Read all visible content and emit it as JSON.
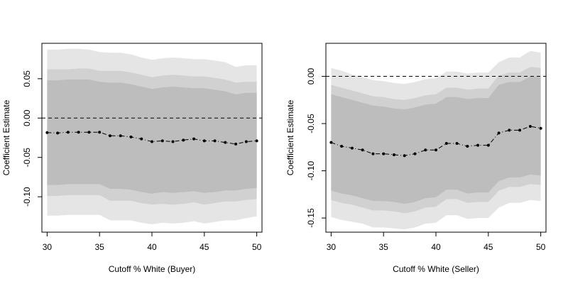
{
  "chart_data": [
    {
      "type": "line",
      "xlabel": "Cutoff % White (Buyer)",
      "ylabel": "Coefficient Estimate",
      "xlim": [
        29.5,
        50.5
      ],
      "ylim": [
        -0.145,
        0.095
      ],
      "x_ticks": [
        30,
        35,
        40,
        45,
        50
      ],
      "x_tick_labels": [
        "30",
        "35",
        "40",
        "45",
        "50"
      ],
      "y_ticks": [
        0.05,
        0.0,
        -0.05,
        -0.1
      ],
      "y_tick_labels": [
        "0.05",
        "0.00",
        "-0.05",
        "-0.10"
      ],
      "reference_line": 0.0,
      "x": [
        30,
        31,
        32,
        33,
        34,
        35,
        36,
        37,
        38,
        39,
        40,
        41,
        42,
        43,
        44,
        45,
        46,
        47,
        48,
        49,
        50
      ],
      "estimate": [
        -0.0185,
        -0.019,
        -0.018,
        -0.018,
        -0.018,
        -0.018,
        -0.0225,
        -0.0225,
        -0.024,
        -0.0265,
        -0.03,
        -0.029,
        -0.03,
        -0.028,
        -0.0265,
        -0.029,
        -0.029,
        -0.031,
        -0.033,
        -0.03,
        -0.029
      ],
      "bands": [
        {
          "level": "outer",
          "color": "#e5e5e5",
          "upper": [
            0.087,
            0.087,
            0.088,
            0.088,
            0.087,
            0.084,
            0.083,
            0.083,
            0.081,
            0.077,
            0.074,
            0.076,
            0.077,
            0.076,
            0.075,
            0.075,
            0.073,
            0.071,
            0.065,
            0.067,
            0.067
          ],
          "lower": [
            -0.124,
            -0.124,
            -0.123,
            -0.123,
            -0.123,
            -0.123,
            -0.13,
            -0.13,
            -0.13,
            -0.133,
            -0.135,
            -0.133,
            -0.134,
            -0.133,
            -0.131,
            -0.134,
            -0.132,
            -0.13,
            -0.13,
            -0.127,
            -0.125
          ]
        },
        {
          "level": "middle",
          "color": "#d1d1d1",
          "upper": [
            0.062,
            0.062,
            0.062,
            0.063,
            0.063,
            0.06,
            0.06,
            0.06,
            0.058,
            0.055,
            0.052,
            0.054,
            0.055,
            0.054,
            0.053,
            0.053,
            0.051,
            0.049,
            0.045,
            0.046,
            0.046
          ],
          "lower": [
            -0.099,
            -0.099,
            -0.098,
            -0.098,
            -0.098,
            -0.098,
            -0.105,
            -0.105,
            -0.105,
            -0.108,
            -0.11,
            -0.109,
            -0.11,
            -0.109,
            -0.107,
            -0.11,
            -0.108,
            -0.106,
            -0.106,
            -0.104,
            -0.103
          ]
        },
        {
          "level": "inner",
          "color": "#bdbdbd",
          "upper": [
            0.048,
            0.048,
            0.049,
            0.049,
            0.049,
            0.046,
            0.045,
            0.045,
            0.043,
            0.04,
            0.037,
            0.039,
            0.04,
            0.039,
            0.038,
            0.038,
            0.036,
            0.034,
            0.03,
            0.032,
            0.032
          ],
          "lower": [
            -0.085,
            -0.085,
            -0.084,
            -0.084,
            -0.084,
            -0.084,
            -0.09,
            -0.09,
            -0.091,
            -0.094,
            -0.096,
            -0.094,
            -0.095,
            -0.094,
            -0.093,
            -0.095,
            -0.094,
            -0.092,
            -0.092,
            -0.09,
            -0.089
          ]
        }
      ]
    },
    {
      "type": "line",
      "xlabel": "Cutoff % White (Seller)",
      "ylabel": "Coefficient Estimate",
      "xlim": [
        29.5,
        50.5
      ],
      "ylim": [
        -0.165,
        0.035
      ],
      "x_ticks": [
        30,
        35,
        40,
        45,
        50
      ],
      "x_tick_labels": [
        "30",
        "35",
        "40",
        "45",
        "50"
      ],
      "y_ticks": [
        0.0,
        -0.05,
        -0.1,
        -0.15
      ],
      "y_tick_labels": [
        "0.00",
        "-0.05",
        "-0.10",
        "-0.15"
      ],
      "reference_line": 0.0,
      "x": [
        30,
        31,
        32,
        33,
        34,
        35,
        36,
        37,
        38,
        39,
        40,
        41,
        42,
        43,
        44,
        45,
        46,
        47,
        48,
        49,
        50
      ],
      "estimate": [
        -0.07,
        -0.074,
        -0.076,
        -0.078,
        -0.082,
        -0.082,
        -0.083,
        -0.084,
        -0.082,
        -0.078,
        -0.078,
        -0.071,
        -0.071,
        -0.074,
        -0.073,
        -0.073,
        -0.06,
        -0.057,
        -0.057,
        -0.053,
        -0.055
      ],
      "bands": [
        {
          "level": "outer",
          "color": "#e5e5e5",
          "upper": [
            0.009,
            0.006,
            0.002,
            -0.001,
            -0.004,
            -0.005,
            -0.007,
            -0.008,
            -0.006,
            -0.003,
            -0.002,
            0.005,
            0.005,
            0.003,
            0.004,
            0.004,
            0.015,
            0.02,
            0.02,
            0.027,
            0.025
          ],
          "lower": [
            -0.149,
            -0.152,
            -0.154,
            -0.156,
            -0.16,
            -0.16,
            -0.161,
            -0.162,
            -0.16,
            -0.156,
            -0.155,
            -0.147,
            -0.147,
            -0.151,
            -0.15,
            -0.15,
            -0.139,
            -0.134,
            -0.134,
            -0.131,
            -0.132
          ]
        },
        {
          "level": "middle",
          "color": "#d1d1d1",
          "upper": [
            -0.009,
            -0.012,
            -0.015,
            -0.018,
            -0.021,
            -0.022,
            -0.024,
            -0.025,
            -0.023,
            -0.02,
            -0.019,
            -0.012,
            -0.012,
            -0.014,
            -0.013,
            -0.013,
            0.001,
            0.004,
            0.004,
            0.01,
            0.009
          ],
          "lower": [
            -0.131,
            -0.134,
            -0.136,
            -0.139,
            -0.142,
            -0.142,
            -0.143,
            -0.145,
            -0.143,
            -0.139,
            -0.138,
            -0.13,
            -0.13,
            -0.134,
            -0.133,
            -0.133,
            -0.121,
            -0.117,
            -0.117,
            -0.114,
            -0.115
          ]
        },
        {
          "level": "inner",
          "color": "#bdbdbd",
          "upper": [
            -0.019,
            -0.022,
            -0.025,
            -0.028,
            -0.031,
            -0.032,
            -0.034,
            -0.035,
            -0.033,
            -0.03,
            -0.029,
            -0.022,
            -0.022,
            -0.024,
            -0.023,
            -0.023,
            -0.009,
            -0.006,
            -0.006,
            0.0,
            -0.001
          ],
          "lower": [
            -0.121,
            -0.124,
            -0.126,
            -0.129,
            -0.132,
            -0.132,
            -0.133,
            -0.135,
            -0.133,
            -0.129,
            -0.128,
            -0.12,
            -0.12,
            -0.124,
            -0.123,
            -0.123,
            -0.111,
            -0.107,
            -0.107,
            -0.104,
            -0.105
          ]
        }
      ]
    }
  ]
}
